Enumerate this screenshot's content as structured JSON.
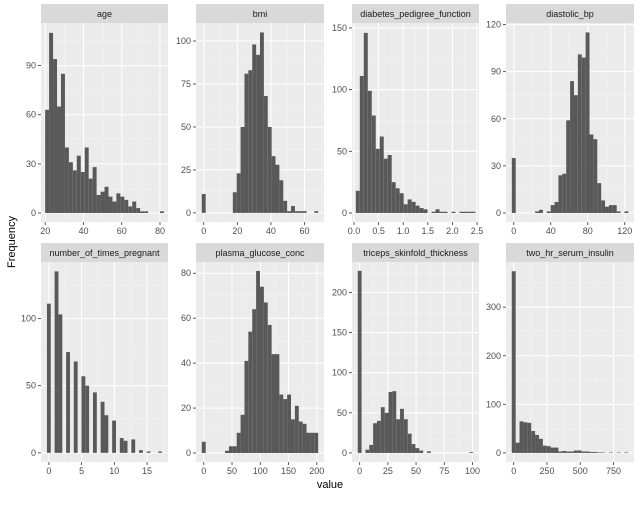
{
  "chart_data": {
    "type": "bar",
    "subtype": "faceted-histogram",
    "xlabel": "value",
    "ylabel": "Frequency",
    "grid": true,
    "colors": {
      "bar": "#595959",
      "panel": "#EBEBEB",
      "strip": "#D9D9D9",
      "grid": "#FFFFFF"
    },
    "panels": [
      {
        "title": "age",
        "binwidth": 2.07,
        "x_start": 21,
        "xlim": [
          17.8,
          84.2
        ],
        "ylim": [
          -5.5,
          116
        ],
        "xticks": [
          20,
          40,
          60,
          80
        ],
        "yticks": [
          0,
          30,
          60,
          90
        ],
        "counts": [
          63,
          110,
          94,
          65,
          85,
          40,
          31,
          26,
          35,
          25,
          40,
          21,
          28,
          11,
          13,
          16,
          10,
          7,
          12,
          10,
          8,
          4,
          7,
          3,
          1,
          1,
          0,
          0,
          0,
          1
        ]
      },
      {
        "title": "bmi",
        "binwidth": 2.31,
        "x_start": 0,
        "xlim": [
          -4.6,
          71.6
        ],
        "ylim": [
          -5.3,
          110.5
        ],
        "xticks": [
          0,
          20,
          40,
          60
        ],
        "yticks": [
          0,
          25,
          50,
          75,
          100
        ],
        "counts": [
          11,
          0,
          0,
          0,
          0,
          0,
          0,
          0,
          12,
          23,
          50,
          81,
          83,
          98,
          92,
          105,
          68,
          50,
          33,
          28,
          19,
          7,
          1,
          4,
          1,
          1,
          1,
          0,
          0,
          1
        ]
      },
      {
        "title": "diabetes_pedigree_function",
        "binwidth": 0.081,
        "x_start": 0.078,
        "xlim": [
          -0.04,
          2.54
        ],
        "ylim": [
          -7.3,
          154
        ],
        "xticks": [
          0.0,
          0.5,
          1.0,
          1.5,
          2.0,
          2.5
        ],
        "xtick_labels": [
          "0.0",
          "0.5",
          "1.0",
          "1.5",
          "2.0",
          "2.5"
        ],
        "yticks": [
          0,
          50,
          100,
          150
        ],
        "counts": [
          18,
          111,
          146,
          99,
          79,
          52,
          62,
          44,
          47,
          25,
          20,
          16,
          7,
          11,
          9,
          6,
          4,
          3,
          0,
          1,
          3,
          1,
          1,
          0,
          1,
          0,
          1,
          1,
          1,
          1
        ]
      },
      {
        "title": "diastolic_bp",
        "binwidth": 4.2,
        "x_start": 0,
        "xlim": [
          -8.4,
          130
        ],
        "ylim": [
          -5.75,
          121
        ],
        "xticks": [
          0,
          40,
          80,
          120
        ],
        "yticks": [
          0,
          30,
          60,
          90,
          120
        ],
        "counts": [
          35,
          0,
          0,
          0,
          0,
          0,
          1,
          2,
          0,
          1,
          5,
          7,
          24,
          25,
          59,
          84,
          75,
          101,
          99,
          115,
          50,
          47,
          19,
          8,
          4,
          5,
          5,
          1,
          0,
          1
        ]
      },
      {
        "title": "number_of_times_pregnant",
        "binwidth": 0.586,
        "x_start": 0,
        "xlim": [
          -1.2,
          18.2
        ],
        "ylim": [
          -6.8,
          142
        ],
        "xticks": [
          0,
          5,
          10,
          15
        ],
        "yticks": [
          0,
          50,
          100
        ],
        "counts": [
          111,
          0,
          135,
          103,
          0,
          75,
          0,
          68,
          0,
          57,
          50,
          0,
          45,
          0,
          38,
          28,
          0,
          24,
          0,
          11,
          9,
          0,
          10,
          0,
          2,
          0,
          1,
          0,
          0,
          1
        ]
      },
      {
        "title": "plasma_glucose_conc",
        "binwidth": 6.86,
        "x_start": 0,
        "xlim": [
          -13.7,
          212.7
        ],
        "ylim": [
          -4,
          85
        ],
        "xticks": [
          0,
          50,
          100,
          150,
          200
        ],
        "yticks": [
          0,
          20,
          40,
          60,
          80
        ],
        "counts": [
          5,
          0,
          0,
          0,
          0,
          0,
          1,
          3,
          3,
          9,
          17,
          41,
          54,
          64,
          81,
          74,
          67,
          57,
          44,
          44,
          26,
          24,
          26,
          15,
          21,
          14,
          13,
          9,
          9,
          9
        ]
      },
      {
        "title": "triceps_skinfold_thickness",
        "binwidth": 3.41,
        "x_start": 0,
        "xlim": [
          -6.8,
          105.8
        ],
        "ylim": [
          -11.3,
          238
        ],
        "xticks": [
          0,
          25,
          50,
          75,
          100
        ],
        "yticks": [
          0,
          50,
          100,
          150,
          200
        ],
        "counts": [
          227,
          0,
          4,
          10,
          37,
          40,
          57,
          50,
          76,
          77,
          42,
          55,
          42,
          24,
          11,
          6,
          3,
          0,
          2,
          0,
          0,
          0,
          0,
          0,
          0,
          0,
          0,
          0,
          0,
          1
        ]
      },
      {
        "title": "two_hr_serum_insulin",
        "binwidth": 29.2,
        "x_start": 0,
        "xlim": [
          -58,
          904
        ],
        "ylim": [
          -18.7,
          393
        ],
        "xticks": [
          0,
          250,
          500,
          750
        ],
        "yticks": [
          0,
          100,
          200,
          300
        ],
        "counts": [
          374,
          21,
          65,
          63,
          62,
          45,
          37,
          29,
          15,
          14,
          11,
          11,
          3,
          4,
          3,
          3,
          5,
          5,
          3,
          3,
          2,
          2,
          1,
          1,
          0,
          1,
          0,
          1,
          0,
          1
        ]
      }
    ]
  }
}
